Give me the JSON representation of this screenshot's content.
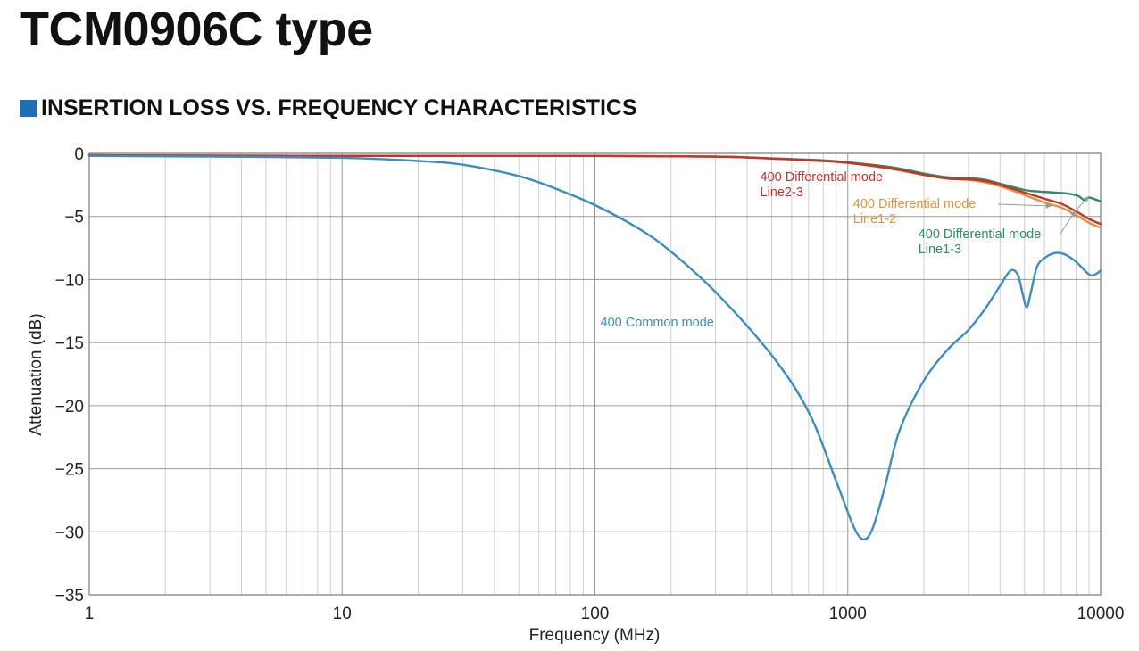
{
  "page": {
    "title": "TCM0906C type",
    "section_heading": "INSERTION LOSS VS. FREQUENCY CHARACTERISTICS",
    "heading_icon": "blue-square-icon",
    "accent_color": "#1f6fb5"
  },
  "chart_data": {
    "type": "line",
    "title": "",
    "xlabel": "Frequency (MHz)",
    "ylabel": "Attenuation (dB)",
    "xscale": "log",
    "xlim": [
      1,
      10000
    ],
    "ylim": [
      -35,
      0
    ],
    "xticks": [
      {
        "value": 1,
        "label": "1"
      },
      {
        "value": 10,
        "label": "10"
      },
      {
        "value": 100,
        "label": "100"
      },
      {
        "value": 1000,
        "label": "1000"
      },
      {
        "value": 10000,
        "label": "10000"
      }
    ],
    "yticks": [
      {
        "value": 0,
        "label": "0"
      },
      {
        "value": -5,
        "label": "−5"
      },
      {
        "value": -10,
        "label": "−10"
      },
      {
        "value": -15,
        "label": "−15"
      },
      {
        "value": -20,
        "label": "−20"
      },
      {
        "value": -25,
        "label": "−25"
      },
      {
        "value": -30,
        "label": "−30"
      },
      {
        "value": -35,
        "label": "−35"
      }
    ],
    "grid": true,
    "series": [
      {
        "name": "400 Common mode",
        "color": "#3a8fc0",
        "points": [
          [
            1,
            -0.2
          ],
          [
            3,
            -0.25
          ],
          [
            10,
            -0.35
          ],
          [
            20,
            -0.6
          ],
          [
            30,
            -0.9
          ],
          [
            50,
            -1.8
          ],
          [
            70,
            -2.8
          ],
          [
            100,
            -4.1
          ],
          [
            150,
            -6.0
          ],
          [
            200,
            -7.8
          ],
          [
            300,
            -11.0
          ],
          [
            500,
            -16.0
          ],
          [
            700,
            -20.5
          ],
          [
            900,
            -26.0
          ],
          [
            1050,
            -29.5
          ],
          [
            1150,
            -30.6
          ],
          [
            1250,
            -29.8
          ],
          [
            1400,
            -26.5
          ],
          [
            1600,
            -22.0
          ],
          [
            2000,
            -18.0
          ],
          [
            2500,
            -15.5
          ],
          [
            3000,
            -14.0
          ],
          [
            3500,
            -12.3
          ],
          [
            4000,
            -10.5
          ],
          [
            4400,
            -9.3
          ],
          [
            4700,
            -9.6
          ],
          [
            4900,
            -11.0
          ],
          [
            5100,
            -12.2
          ],
          [
            5300,
            -11.0
          ],
          [
            5600,
            -9.0
          ],
          [
            6000,
            -8.3
          ],
          [
            6600,
            -7.9
          ],
          [
            7200,
            -8.0
          ],
          [
            8000,
            -8.6
          ],
          [
            9000,
            -9.6
          ],
          [
            9500,
            -9.6
          ],
          [
            10000,
            -9.3
          ]
        ]
      },
      {
        "name": "400 Differential mode Line2-3",
        "color": "#c8322a",
        "points": [
          [
            1,
            -0.15
          ],
          [
            10,
            -0.2
          ],
          [
            100,
            -0.2
          ],
          [
            300,
            -0.25
          ],
          [
            500,
            -0.4
          ],
          [
            800,
            -0.6
          ],
          [
            1000,
            -0.75
          ],
          [
            1500,
            -1.2
          ],
          [
            2000,
            -1.7
          ],
          [
            2500,
            -2.0
          ],
          [
            3000,
            -2.05
          ],
          [
            3500,
            -2.2
          ],
          [
            4000,
            -2.5
          ],
          [
            5000,
            -3.1
          ],
          [
            6000,
            -3.6
          ],
          [
            7000,
            -4.0
          ],
          [
            8000,
            -4.6
          ],
          [
            9000,
            -5.2
          ],
          [
            10000,
            -5.6
          ]
        ]
      },
      {
        "name": "400 Differential mode Line1-2",
        "color": "#e0933a",
        "points": [
          [
            1,
            -0.15
          ],
          [
            10,
            -0.2
          ],
          [
            100,
            -0.2
          ],
          [
            300,
            -0.25
          ],
          [
            500,
            -0.4
          ],
          [
            800,
            -0.6
          ],
          [
            1000,
            -0.75
          ],
          [
            1500,
            -1.25
          ],
          [
            2000,
            -1.7
          ],
          [
            2500,
            -2.0
          ],
          [
            3000,
            -2.1
          ],
          [
            3500,
            -2.3
          ],
          [
            4000,
            -2.6
          ],
          [
            5000,
            -3.3
          ],
          [
            6000,
            -3.9
          ],
          [
            7000,
            -4.3
          ],
          [
            8000,
            -4.9
          ],
          [
            9000,
            -5.5
          ],
          [
            10000,
            -5.9
          ]
        ]
      },
      {
        "name": "400 Differential mode Line1-3",
        "color": "#2e8c66",
        "points": [
          [
            1,
            -0.15
          ],
          [
            10,
            -0.2
          ],
          [
            100,
            -0.2
          ],
          [
            300,
            -0.25
          ],
          [
            500,
            -0.4
          ],
          [
            800,
            -0.55
          ],
          [
            1000,
            -0.7
          ],
          [
            1500,
            -1.1
          ],
          [
            2000,
            -1.6
          ],
          [
            2500,
            -1.9
          ],
          [
            3000,
            -1.95
          ],
          [
            3500,
            -2.1
          ],
          [
            4000,
            -2.4
          ],
          [
            5000,
            -2.9
          ],
          [
            5500,
            -3.0
          ],
          [
            6500,
            -3.1
          ],
          [
            7500,
            -3.2
          ],
          [
            8200,
            -3.4
          ],
          [
            8600,
            -3.7
          ],
          [
            9000,
            -3.5
          ],
          [
            10000,
            -3.8
          ]
        ]
      }
    ],
    "annotations": [
      {
        "series": 1,
        "lines": [
          "400 Differential mode",
          "Line2-3"
        ],
        "x": 450,
        "y": -2.2
      },
      {
        "series": 2,
        "lines": [
          "400 Differential mode",
          "Line1-2"
        ],
        "x": 1050,
        "y": -4.3
      },
      {
        "series": 3,
        "lines": [
          "400 Differential mode",
          "Line1-3"
        ],
        "x": 1900,
        "y": -6.7
      },
      {
        "series": 0,
        "lines": [
          "400 Common mode"
        ],
        "x": 105,
        "y": -13.7
      }
    ]
  }
}
